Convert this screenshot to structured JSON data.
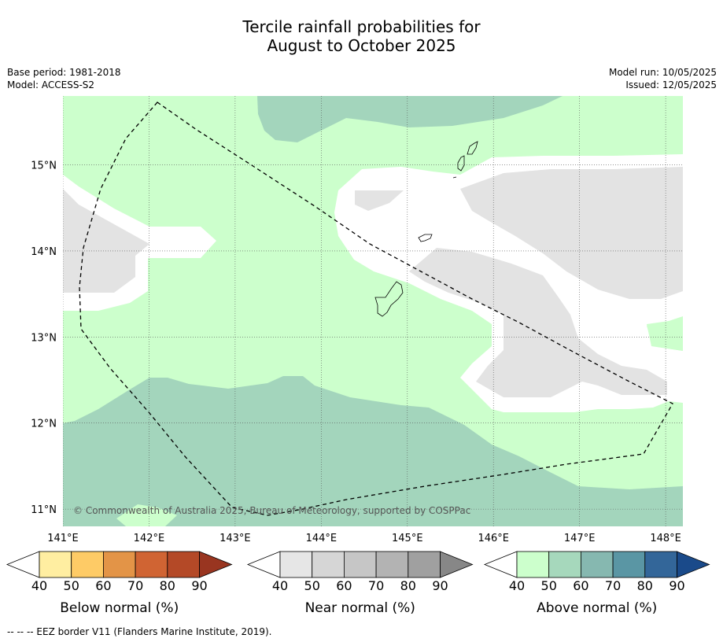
{
  "title": {
    "line1": "Tercile rainfall probabilities for",
    "line2": "August to October 2025"
  },
  "meta": {
    "base_period": "Base period: 1981-2018",
    "model": "Model: ACCESS-S2",
    "model_run": "Model run: 10/05/2025",
    "issued": "Issued: 12/05/2025"
  },
  "map": {
    "lon_range": [
      141,
      148.2
    ],
    "lat_range": [
      10.8,
      15.8
    ],
    "lon_ticks": [
      {
        "value": 141,
        "label": "141°E"
      },
      {
        "value": 142,
        "label": "142°E"
      },
      {
        "value": 143,
        "label": "143°E"
      },
      {
        "value": 144,
        "label": "144°E"
      },
      {
        "value": 145,
        "label": "145°E"
      },
      {
        "value": 146,
        "label": "146°E"
      },
      {
        "value": 147,
        "label": "147°E"
      },
      {
        "value": 148,
        "label": "148°E"
      }
    ],
    "lat_ticks": [
      {
        "value": 15,
        "label": "15°N"
      },
      {
        "value": 14,
        "label": "14°N"
      },
      {
        "value": 13,
        "label": "13°N"
      },
      {
        "value": 12,
        "label": "12°N"
      },
      {
        "value": 11,
        "label": "11°N"
      }
    ],
    "copyright": "© Commonwealth of Australia 2025, Bureau of Meteorology, supported by COSPPac",
    "colors": {
      "above_40_50": "#ccffcc",
      "above_50_60": "#a3d5bc",
      "near_40_50": "#e3e3e3",
      "below_40": "#ffffff"
    }
  },
  "colorbars": [
    {
      "label": "Below normal (%)",
      "ticks": [
        "40",
        "50",
        "60",
        "70",
        "80",
        "90"
      ],
      "colors": [
        "#ffffff",
        "#ffeea1",
        "#fecb66",
        "#e39447",
        "#d06433",
        "#b44927",
        "#993520"
      ]
    },
    {
      "label": "Near normal (%)",
      "ticks": [
        "40",
        "50",
        "60",
        "70",
        "80",
        "90"
      ],
      "colors": [
        "#ffffff",
        "#e6e6e6",
        "#d6d6d6",
        "#c6c6c6",
        "#b3b3b3",
        "#a0a0a0",
        "#878787"
      ]
    },
    {
      "label": "Above normal (%)",
      "ticks": [
        "40",
        "50",
        "60",
        "70",
        "80",
        "90"
      ],
      "colors": [
        "#ffffff",
        "#ccffcc",
        "#a6d8bc",
        "#86b8b0",
        "#5a96a4",
        "#336699",
        "#1a4a8a"
      ]
    }
  ],
  "footnote": "-- -- -- EEZ border V11 (Flanders Marine Institute, 2019)."
}
